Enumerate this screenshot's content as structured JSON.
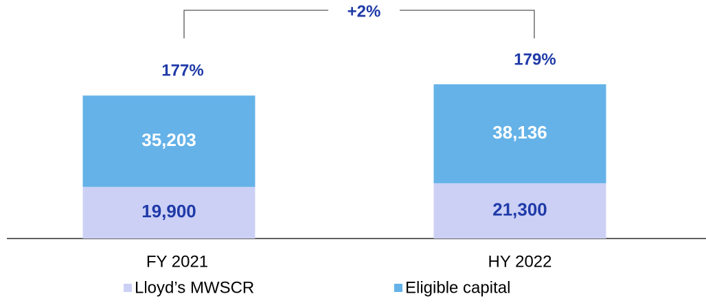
{
  "chart_data": {
    "type": "stacked_bar",
    "categories": [
      "FY 2021",
      "HY 2022"
    ],
    "series": [
      {
        "name": "Lloyd’s MWSCR",
        "color": "#ccd0f5",
        "values": [
          19900,
          21300
        ],
        "value_labels": [
          "19,900",
          "21,300"
        ]
      },
      {
        "name": "Eligible capital",
        "color": "#64b2e8",
        "values": [
          35203,
          38136
        ],
        "value_labels": [
          "35,203",
          "38,136"
        ]
      }
    ],
    "ratio_labels": [
      "177%",
      "179%"
    ],
    "change_label": "+2%"
  }
}
